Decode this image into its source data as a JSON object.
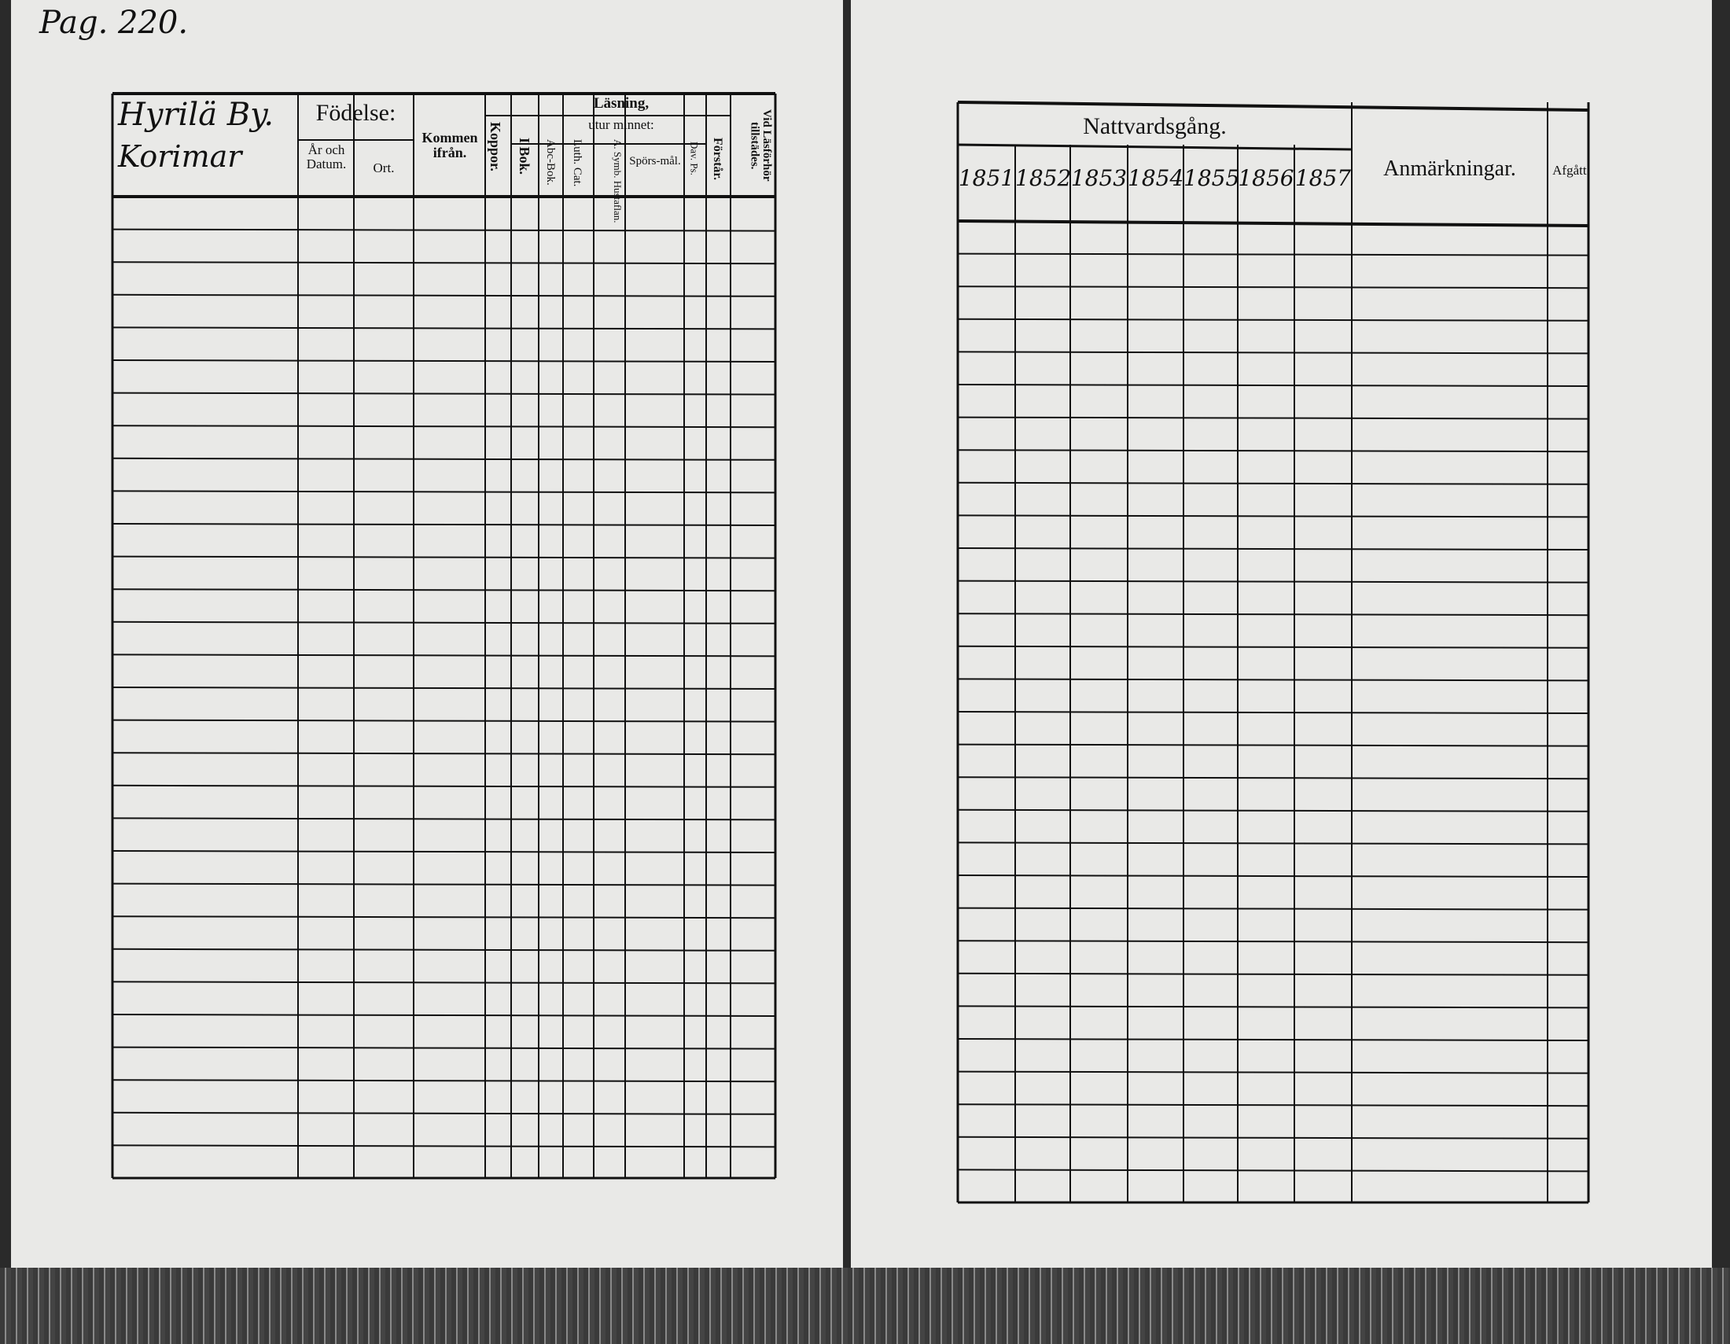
{
  "page_number": "Pag. 220.",
  "left_table": {
    "village": "Hyrilä By.",
    "house": "Korimar",
    "headers": {
      "fodelse": "Födelse:",
      "ar_och_datum": "År och Datum.",
      "ort": "Ort.",
      "kommen_ifran": "Kommen ifrån.",
      "koppor": "Koppor.",
      "lasning": "Läsning,",
      "utur_minnet": "utur minnet:",
      "i_bok": "I Bok.",
      "abc_bok": "Abc-Bok.",
      "luth_cat": "Luth. Cat.",
      "a_symb_hustaflan": "A. Symb. Hustaflan.",
      "sporsmal": "Spörs-mål.",
      "dav_ps": "Dav. Ps.",
      "forstar": "Förstår.",
      "vid_lasforhor": "Vid Läsförhör tillstädes."
    }
  },
  "right_table": {
    "headers": {
      "nattvardsgang": "Nattvardsgång.",
      "years": [
        "1851",
        "1852",
        "1853",
        "1854",
        "1855",
        "1856",
        "1857"
      ],
      "anmarkningar": "Anmärkningar.",
      "afgatt": "Afgått."
    }
  }
}
